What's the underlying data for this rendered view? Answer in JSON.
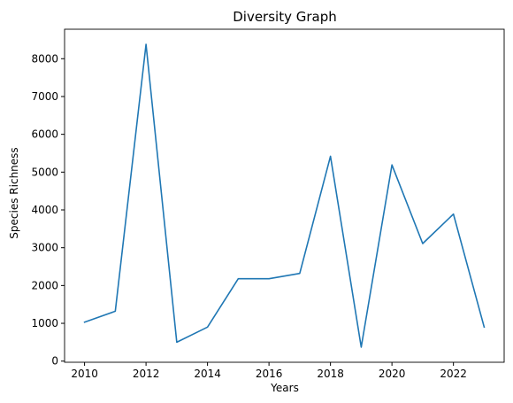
{
  "chart_data": {
    "type": "line",
    "title": "Diversity Graph",
    "xlabel": "Years",
    "ylabel": "Species Richness",
    "x": [
      2010,
      2011,
      2012,
      2013,
      2014,
      2015,
      2016,
      2017,
      2018,
      2019,
      2020,
      2021,
      2022,
      2023
    ],
    "series": [
      {
        "values": [
          1030,
          1320,
          8380,
          500,
          900,
          2180,
          2180,
          2320,
          5420,
          370,
          5190,
          3110,
          3890,
          900
        ],
        "color": "#1f77b4"
      }
    ],
    "xlim": [
      2009.35,
      2023.65
    ],
    "ylim": [
      -30,
      8780
    ],
    "xticks": [
      2010,
      2012,
      2014,
      2016,
      2018,
      2020,
      2022
    ],
    "xtick_labels": [
      "2010",
      "2012",
      "2014",
      "2016",
      "2018",
      "2020",
      "2022"
    ],
    "yticks": [
      0,
      1000,
      2000,
      3000,
      4000,
      5000,
      6000,
      7000,
      8000
    ],
    "ytick_labels": [
      "0",
      "1000",
      "2000",
      "3000",
      "4000",
      "5000",
      "6000",
      "7000",
      "8000"
    ],
    "grid": false,
    "legend": false
  }
}
